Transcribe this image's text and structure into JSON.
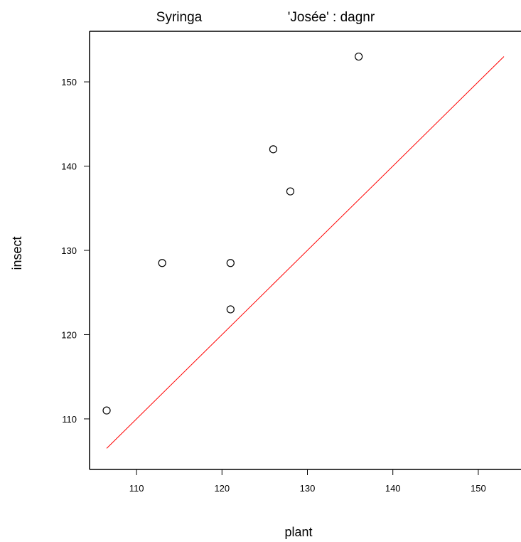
{
  "chart_data": {
    "type": "scatter",
    "title_left": "Syringa",
    "title_right": "'Josée' : dagnr",
    "xlabel": "plant",
    "ylabel": "insect",
    "xlim": [
      104.5,
      155
    ],
    "ylim": [
      104,
      156
    ],
    "x_ticks": [
      110,
      120,
      130,
      140,
      150
    ],
    "y_ticks": [
      110,
      120,
      130,
      140,
      150
    ],
    "grid": false,
    "series": [
      {
        "points": [
          {
            "x": 106.5,
            "y": 111
          },
          {
            "x": 113,
            "y": 128.5
          },
          {
            "x": 121,
            "y": 128.5
          },
          {
            "x": 121,
            "y": 123
          },
          {
            "x": 126,
            "y": 142
          },
          {
            "x": 128,
            "y": 137
          },
          {
            "x": 136,
            "y": 153
          }
        ]
      }
    ],
    "reference_line": {
      "from": [
        106.5,
        106.5
      ],
      "to": [
        153,
        153
      ],
      "color": "#ff0000"
    }
  }
}
